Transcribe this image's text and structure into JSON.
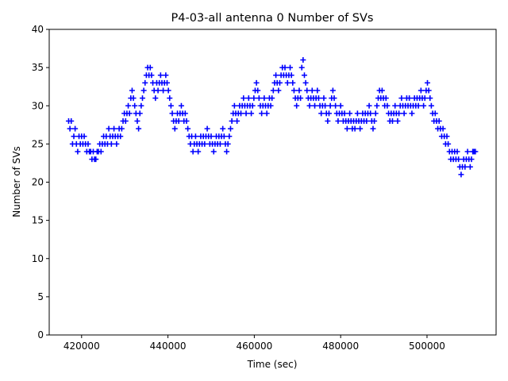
{
  "chart_data": {
    "type": "scatter",
    "title": "P4-03-all antenna 0 Number of SVs",
    "xlabel": "Time (sec)",
    "ylabel": "Number of SVs",
    "xlim": [
      412500,
      516000
    ],
    "ylim": [
      0,
      40
    ],
    "xticks": [
      420000,
      440000,
      460000,
      480000,
      500000
    ],
    "xtick_labels": [
      "420000",
      "440000",
      "460000",
      "480000",
      "500000"
    ],
    "yticks": [
      0,
      5,
      10,
      15,
      20,
      25,
      30,
      35,
      40
    ],
    "ytick_labels": [
      "0",
      "5",
      "10",
      "15",
      "20",
      "25",
      "30",
      "35",
      "40"
    ],
    "grid": false,
    "marker": "+",
    "marker_color": "#0000ff",
    "series": [
      {
        "name": "",
        "points": [
          [
            417000,
            28
          ],
          [
            417300,
            27
          ],
          [
            417600,
            28
          ],
          [
            417900,
            25
          ],
          [
            418200,
            26
          ],
          [
            418500,
            27
          ],
          [
            418800,
            25
          ],
          [
            419100,
            24
          ],
          [
            419400,
            26
          ],
          [
            419700,
            25
          ],
          [
            420000,
            26
          ],
          [
            420300,
            25
          ],
          [
            420600,
            26
          ],
          [
            420900,
            25
          ],
          [
            421200,
            24
          ],
          [
            421500,
            25
          ],
          [
            421800,
            24
          ],
          [
            422100,
            24
          ],
          [
            422400,
            23
          ],
          [
            422700,
            24
          ],
          [
            423000,
            23
          ],
          [
            423300,
            23
          ],
          [
            423600,
            24
          ],
          [
            423900,
            24
          ],
          [
            424200,
            25
          ],
          [
            424500,
            24
          ],
          [
            424800,
            25
          ],
          [
            425100,
            26
          ],
          [
            425400,
            25
          ],
          [
            425700,
            26
          ],
          [
            426000,
            25
          ],
          [
            426300,
            27
          ],
          [
            426600,
            26
          ],
          [
            426900,
            25
          ],
          [
            427200,
            26
          ],
          [
            427500,
            27
          ],
          [
            427800,
            26
          ],
          [
            428100,
            25
          ],
          [
            428400,
            26
          ],
          [
            428700,
            27
          ],
          [
            429000,
            26
          ],
          [
            429300,
            27
          ],
          [
            429600,
            28
          ],
          [
            429900,
            29
          ],
          [
            430200,
            28
          ],
          [
            430500,
            29
          ],
          [
            430800,
            30
          ],
          [
            431100,
            29
          ],
          [
            431400,
            31
          ],
          [
            431700,
            32
          ],
          [
            432000,
            31
          ],
          [
            432300,
            30
          ],
          [
            432600,
            29
          ],
          [
            432900,
            28
          ],
          [
            433200,
            27
          ],
          [
            433500,
            29
          ],
          [
            433800,
            30
          ],
          [
            434100,
            31
          ],
          [
            434400,
            32
          ],
          [
            434700,
            33
          ],
          [
            435000,
            34
          ],
          [
            435300,
            35
          ],
          [
            435600,
            34
          ],
          [
            435900,
            35
          ],
          [
            436200,
            34
          ],
          [
            436500,
            33
          ],
          [
            436800,
            32
          ],
          [
            437100,
            31
          ],
          [
            437400,
            33
          ],
          [
            437700,
            32
          ],
          [
            438000,
            33
          ],
          [
            438300,
            34
          ],
          [
            438600,
            33
          ],
          [
            438900,
            32
          ],
          [
            439200,
            33
          ],
          [
            439500,
            34
          ],
          [
            439800,
            33
          ],
          [
            440100,
            32
          ],
          [
            440400,
            31
          ],
          [
            440700,
            30
          ],
          [
            441000,
            29
          ],
          [
            441300,
            28
          ],
          [
            441600,
            27
          ],
          [
            441900,
            28
          ],
          [
            442200,
            29
          ],
          [
            442500,
            28
          ],
          [
            442800,
            29
          ],
          [
            443100,
            30
          ],
          [
            443400,
            29
          ],
          [
            443700,
            28
          ],
          [
            444000,
            29
          ],
          [
            444300,
            28
          ],
          [
            444600,
            27
          ],
          [
            444900,
            26
          ],
          [
            445200,
            25
          ],
          [
            445500,
            26
          ],
          [
            445800,
            24
          ],
          [
            446100,
            25
          ],
          [
            446400,
            26
          ],
          [
            446700,
            25
          ],
          [
            447000,
            24
          ],
          [
            447300,
            25
          ],
          [
            447600,
            26
          ],
          [
            447900,
            25
          ],
          [
            448200,
            26
          ],
          [
            448500,
            25
          ],
          [
            448800,
            26
          ],
          [
            449100,
            27
          ],
          [
            449400,
            26
          ],
          [
            449700,
            25
          ],
          [
            450000,
            26
          ],
          [
            450300,
            25
          ],
          [
            450600,
            24
          ],
          [
            450900,
            25
          ],
          [
            451200,
            26
          ],
          [
            451500,
            25
          ],
          [
            451800,
            26
          ],
          [
            452100,
            25
          ],
          [
            452400,
            26
          ],
          [
            452700,
            27
          ],
          [
            453000,
            26
          ],
          [
            453300,
            25
          ],
          [
            453600,
            24
          ],
          [
            453900,
            25
          ],
          [
            454200,
            26
          ],
          [
            454500,
            27
          ],
          [
            454800,
            28
          ],
          [
            455100,
            29
          ],
          [
            455400,
            30
          ],
          [
            455700,
            29
          ],
          [
            456000,
            28
          ],
          [
            456300,
            29
          ],
          [
            456600,
            30
          ],
          [
            456900,
            29
          ],
          [
            457200,
            30
          ],
          [
            457500,
            31
          ],
          [
            457800,
            30
          ],
          [
            458100,
            29
          ],
          [
            458400,
            30
          ],
          [
            458700,
            31
          ],
          [
            459000,
            30
          ],
          [
            459300,
            29
          ],
          [
            459600,
            30
          ],
          [
            459900,
            31
          ],
          [
            460200,
            32
          ],
          [
            460500,
            33
          ],
          [
            460800,
            32
          ],
          [
            461100,
            31
          ],
          [
            461400,
            30
          ],
          [
            461700,
            29
          ],
          [
            462000,
            30
          ],
          [
            462300,
            31
          ],
          [
            462600,
            30
          ],
          [
            462900,
            29
          ],
          [
            463200,
            30
          ],
          [
            463500,
            31
          ],
          [
            463800,
            30
          ],
          [
            464100,
            31
          ],
          [
            464400,
            32
          ],
          [
            464700,
            33
          ],
          [
            465000,
            34
          ],
          [
            465300,
            33
          ],
          [
            465600,
            32
          ],
          [
            465900,
            33
          ],
          [
            466200,
            34
          ],
          [
            466500,
            35
          ],
          [
            466800,
            34
          ],
          [
            467100,
            35
          ],
          [
            467400,
            34
          ],
          [
            467700,
            33
          ],
          [
            468000,
            34
          ],
          [
            468300,
            35
          ],
          [
            468600,
            34
          ],
          [
            468900,
            33
          ],
          [
            469200,
            32
          ],
          [
            469500,
            31
          ],
          [
            469800,
            30
          ],
          [
            470100,
            31
          ],
          [
            470400,
            32
          ],
          [
            470700,
            31
          ],
          [
            471000,
            35
          ],
          [
            471300,
            36
          ],
          [
            471600,
            34
          ],
          [
            471900,
            33
          ],
          [
            472200,
            32
          ],
          [
            472500,
            31
          ],
          [
            472800,
            30
          ],
          [
            473100,
            31
          ],
          [
            473400,
            32
          ],
          [
            473700,
            31
          ],
          [
            474000,
            30
          ],
          [
            474300,
            31
          ],
          [
            474600,
            32
          ],
          [
            474900,
            31
          ],
          [
            475200,
            30
          ],
          [
            475500,
            29
          ],
          [
            475800,
            30
          ],
          [
            476100,
            31
          ],
          [
            476400,
            30
          ],
          [
            476700,
            29
          ],
          [
            477000,
            28
          ],
          [
            477300,
            29
          ],
          [
            477600,
            30
          ],
          [
            477900,
            31
          ],
          [
            478200,
            32
          ],
          [
            478500,
            31
          ],
          [
            478800,
            30
          ],
          [
            479100,
            29
          ],
          [
            479400,
            28
          ],
          [
            479700,
            29
          ],
          [
            480000,
            30
          ],
          [
            480300,
            29
          ],
          [
            480600,
            28
          ],
          [
            480900,
            29
          ],
          [
            481200,
            28
          ],
          [
            481500,
            27
          ],
          [
            481800,
            28
          ],
          [
            482100,
            29
          ],
          [
            482400,
            28
          ],
          [
            482700,
            27
          ],
          [
            483000,
            28
          ],
          [
            483300,
            27
          ],
          [
            483600,
            28
          ],
          [
            483900,
            29
          ],
          [
            484200,
            28
          ],
          [
            484500,
            27
          ],
          [
            484800,
            28
          ],
          [
            485100,
            29
          ],
          [
            485400,
            28
          ],
          [
            485700,
            29
          ],
          [
            486000,
            28
          ],
          [
            486300,
            29
          ],
          [
            486600,
            30
          ],
          [
            486900,
            29
          ],
          [
            487200,
            28
          ],
          [
            487500,
            27
          ],
          [
            487800,
            28
          ],
          [
            488100,
            29
          ],
          [
            488400,
            30
          ],
          [
            488700,
            31
          ],
          [
            489000,
            32
          ],
          [
            489300,
            31
          ],
          [
            489600,
            32
          ],
          [
            489900,
            31
          ],
          [
            490200,
            30
          ],
          [
            490500,
            31
          ],
          [
            490800,
            30
          ],
          [
            491100,
            29
          ],
          [
            491400,
            28
          ],
          [
            491700,
            29
          ],
          [
            492000,
            28
          ],
          [
            492300,
            29
          ],
          [
            492600,
            30
          ],
          [
            492900,
            29
          ],
          [
            493200,
            28
          ],
          [
            493500,
            29
          ],
          [
            493800,
            30
          ],
          [
            494100,
            31
          ],
          [
            494400,
            30
          ],
          [
            494700,
            29
          ],
          [
            495000,
            30
          ],
          [
            495300,
            31
          ],
          [
            495600,
            30
          ],
          [
            495900,
            31
          ],
          [
            496200,
            30
          ],
          [
            496500,
            29
          ],
          [
            496800,
            30
          ],
          [
            497100,
            31
          ],
          [
            497400,
            30
          ],
          [
            497700,
            31
          ],
          [
            498000,
            30
          ],
          [
            498300,
            31
          ],
          [
            498600,
            32
          ],
          [
            498900,
            31
          ],
          [
            499200,
            30
          ],
          [
            499500,
            31
          ],
          [
            499800,
            32
          ],
          [
            500100,
            33
          ],
          [
            500400,
            32
          ],
          [
            500700,
            31
          ],
          [
            501000,
            30
          ],
          [
            501300,
            29
          ],
          [
            501600,
            28
          ],
          [
            501900,
            29
          ],
          [
            502200,
            28
          ],
          [
            502500,
            27
          ],
          [
            502800,
            28
          ],
          [
            503100,
            27
          ],
          [
            503400,
            26
          ],
          [
            503700,
            27
          ],
          [
            504000,
            26
          ],
          [
            504300,
            25
          ],
          [
            504600,
            26
          ],
          [
            504900,
            25
          ],
          [
            505200,
            24
          ],
          [
            505500,
            23
          ],
          [
            505800,
            24
          ],
          [
            506100,
            23
          ],
          [
            506400,
            24
          ],
          [
            506700,
            23
          ],
          [
            507000,
            24
          ],
          [
            507300,
            23
          ],
          [
            507600,
            22
          ],
          [
            507900,
            21
          ],
          [
            508200,
            22
          ],
          [
            508500,
            23
          ],
          [
            508800,
            22
          ],
          [
            509100,
            23
          ],
          [
            509400,
            24
          ],
          [
            509700,
            23
          ],
          [
            510000,
            22
          ],
          [
            510300,
            23
          ],
          [
            510600,
            24
          ],
          [
            510900,
            24
          ],
          [
            511200,
            24
          ]
        ]
      }
    ]
  }
}
